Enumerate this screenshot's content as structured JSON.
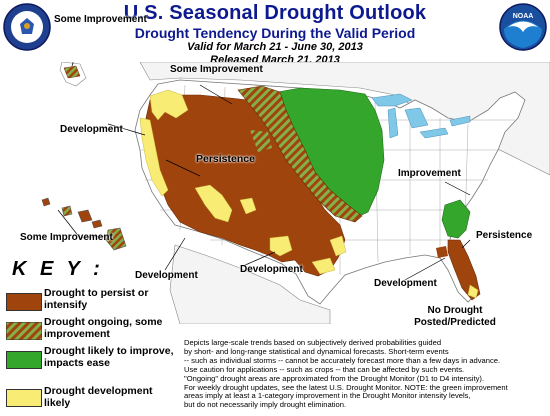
{
  "header": {
    "title": "U.S. Seasonal Drought Outlook",
    "subtitle": "Drought Tendency During the Valid Period",
    "valid": "Valid for March 21 - June 30, 2013",
    "released": "Released March 21, 2013"
  },
  "map_labels": {
    "some_improvement_alaska": "Some Improvement",
    "some_improvement_nw": "Some Improvement",
    "development_west": "Development",
    "persistence": "Persistence",
    "improvement_east": "Improvement",
    "persistence_se": "Persistence",
    "some_improvement_hawaii": "Some Improvement",
    "development_sw": "Development",
    "development_tx": "Development",
    "development_fl": "Development"
  },
  "key": {
    "title": "K E Y :",
    "items": [
      {
        "label_line1": "Drought to persist or",
        "label_line2": "intensify",
        "color": "#a0440e"
      },
      {
        "label_line1": "Drought ongoing, some",
        "label_line2": "improvement",
        "color": "#a0440e",
        "stripe": "#84b04a"
      },
      {
        "label_line1": "Drought likely to improve,",
        "label_line2": "impacts ease",
        "color": "#35a62c"
      },
      {
        "label_line1": "Drought development",
        "label_line2": "likely",
        "color": "#f8ec74"
      }
    ]
  },
  "no_drought": {
    "line1": "No Drought",
    "line2": "Posted/Predicted"
  },
  "notes": [
    "Depicts large-scale trends based on subjectively derived probabilities guided",
    "by short- and long-range statistical and dynamical forecasts. Short-term events",
    "-- such as individual storms -- cannot be accurately forecast more than a few days in advance.",
    "Use caution for applications -- such as crops -- that can be affected by such events.",
    "\"Ongoing\" drought areas are approximated from the Drought Monitor (D1 to D4 intensity).",
    "For weekly drought updates, see the latest U.S. Drought Monitor. NOTE: the green improvement",
    "areas imply at least a 1-category improvement in the Drought Monitor intensity levels,",
    "but do not necessarily imply drought elimination."
  ],
  "logos": {
    "noaa_text": "NOAA"
  },
  "colors": {
    "persist": "#a0440e",
    "improve_some_stripe": "#84b04a",
    "improve": "#35a62c",
    "develop": "#f8ec74",
    "title_blue": "#0d1a8f",
    "lakes": "#7fc8e8"
  }
}
